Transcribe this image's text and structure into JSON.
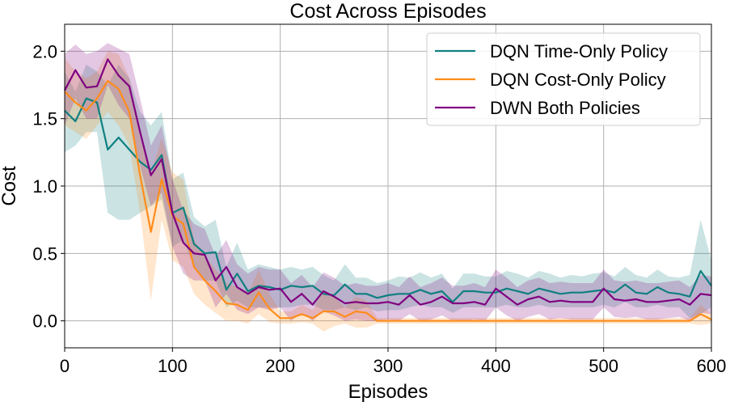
{
  "chart_data": {
    "type": "line",
    "title": "Cost Across Episodes",
    "xlabel": "Episodes",
    "ylabel": "Cost",
    "xlim": [
      0,
      600
    ],
    "ylim": [
      -0.2,
      2.2
    ],
    "xticks": [
      0,
      100,
      200,
      300,
      400,
      500,
      600
    ],
    "yticks": [
      0.0,
      0.5,
      1.0,
      1.5,
      2.0
    ],
    "xtick_labels": [
      "0",
      "100",
      "200",
      "300",
      "400",
      "500",
      "600"
    ],
    "ytick_labels": [
      "0.0",
      "0.5",
      "1.0",
      "1.5",
      "2.0"
    ],
    "grid": true,
    "legend_position": "top-right",
    "x": [
      0,
      10,
      20,
      30,
      40,
      50,
      60,
      70,
      80,
      90,
      100,
      110,
      120,
      130,
      140,
      150,
      160,
      170,
      180,
      190,
      200,
      210,
      220,
      230,
      240,
      250,
      260,
      270,
      280,
      290,
      300,
      310,
      320,
      330,
      340,
      350,
      360,
      370,
      380,
      390,
      400,
      410,
      420,
      430,
      440,
      450,
      460,
      470,
      480,
      490,
      500,
      510,
      520,
      530,
      540,
      550,
      560,
      570,
      580,
      590,
      600
    ],
    "series": [
      {
        "name": "DQN Time-Only Policy",
        "color": "#108080",
        "values": [
          1.56,
          1.48,
          1.65,
          1.62,
          1.27,
          1.36,
          1.27,
          1.18,
          1.12,
          1.23,
          0.8,
          0.84,
          0.57,
          0.5,
          0.51,
          0.23,
          0.35,
          0.22,
          0.26,
          0.25,
          0.23,
          0.26,
          0.25,
          0.26,
          0.2,
          0.19,
          0.27,
          0.2,
          0.2,
          0.17,
          0.19,
          0.2,
          0.2,
          0.23,
          0.2,
          0.22,
          0.14,
          0.22,
          0.22,
          0.21,
          0.21,
          0.24,
          0.22,
          0.2,
          0.24,
          0.22,
          0.2,
          0.21,
          0.21,
          0.22,
          0.23,
          0.21,
          0.27,
          0.21,
          0.2,
          0.25,
          0.21,
          0.2,
          0.18,
          0.37,
          0.26
        ],
        "lower": [
          1.25,
          1.3,
          1.4,
          1.4,
          0.8,
          0.75,
          0.75,
          0.8,
          0.85,
          0.9,
          0.55,
          0.6,
          0.4,
          0.3,
          0.3,
          0.1,
          0.15,
          0.1,
          0.1,
          0.1,
          0.1,
          0.1,
          0.12,
          0.12,
          0.08,
          0.08,
          0.1,
          0.08,
          0.1,
          0.07,
          0.08,
          0.08,
          0.1,
          0.12,
          0.1,
          0.1,
          0.06,
          0.1,
          0.1,
          0.1,
          0.1,
          0.12,
          0.1,
          0.1,
          0.12,
          0.1,
          0.1,
          0.1,
          0.1,
          0.1,
          0.12,
          0.1,
          0.14,
          0.1,
          0.1,
          0.12,
          0.1,
          0.1,
          0.02,
          0.05,
          0.1
        ],
        "upper": [
          1.85,
          1.7,
          1.9,
          1.85,
          1.75,
          1.9,
          1.8,
          1.55,
          1.45,
          1.55,
          1.05,
          1.1,
          0.77,
          0.7,
          0.75,
          0.4,
          0.58,
          0.38,
          0.42,
          0.4,
          0.38,
          0.4,
          0.38,
          0.4,
          0.34,
          0.3,
          0.42,
          0.32,
          0.32,
          0.28,
          0.3,
          0.33,
          0.32,
          0.36,
          0.32,
          0.35,
          0.24,
          0.35,
          0.35,
          0.33,
          0.33,
          0.37,
          0.35,
          0.32,
          0.37,
          0.35,
          0.32,
          0.34,
          0.33,
          0.35,
          0.36,
          0.33,
          0.4,
          0.34,
          0.32,
          0.38,
          0.33,
          0.32,
          0.34,
          0.75,
          0.45
        ]
      },
      {
        "name": "DQN Cost-Only Policy",
        "color": "#ff8c1a",
        "values": [
          1.7,
          1.62,
          1.56,
          1.65,
          1.78,
          1.72,
          1.55,
          1.08,
          0.66,
          1.05,
          0.78,
          0.72,
          0.4,
          0.3,
          0.22,
          0.13,
          0.12,
          0.08,
          0.21,
          0.09,
          0.02,
          0.02,
          0.05,
          0.02,
          0.07,
          0.07,
          0.03,
          0.07,
          0.06,
          0.0,
          0.0,
          0.0,
          0.0,
          0.0,
          0.0,
          0.0,
          0.0,
          0.0,
          0.0,
          0.0,
          0.0,
          0.0,
          0.0,
          0.0,
          0.0,
          0.0,
          0.0,
          0.0,
          0.0,
          0.0,
          0.0,
          0.0,
          0.0,
          0.0,
          0.0,
          0.0,
          0.0,
          0.0,
          0.0,
          0.05,
          0.01
        ],
        "lower": [
          1.45,
          1.4,
          1.35,
          1.45,
          1.55,
          1.45,
          1.3,
          0.8,
          0.15,
          0.75,
          0.45,
          0.4,
          0.2,
          0.12,
          0.06,
          0.0,
          0.0,
          -0.02,
          0.05,
          -0.01,
          -0.02,
          -0.02,
          -0.01,
          -0.02,
          -0.08,
          -0.04,
          -0.02,
          -0.05,
          -0.05,
          -0.02,
          -0.02,
          -0.02,
          -0.02,
          -0.02,
          -0.02,
          -0.02,
          -0.02,
          -0.02,
          -0.02,
          -0.02,
          -0.02,
          -0.02,
          -0.02,
          -0.02,
          -0.02,
          -0.02,
          -0.02,
          -0.02,
          -0.02,
          -0.02,
          -0.02,
          -0.02,
          -0.02,
          -0.02,
          -0.02,
          -0.02,
          -0.02,
          -0.02,
          -0.02,
          -0.03,
          -0.02
        ],
        "upper": [
          1.95,
          1.85,
          1.8,
          1.85,
          2.0,
          1.98,
          1.8,
          1.35,
          1.1,
          1.35,
          1.1,
          1.05,
          0.6,
          0.48,
          0.38,
          0.28,
          0.25,
          0.2,
          0.38,
          0.2,
          0.07,
          0.07,
          0.12,
          0.08,
          0.22,
          0.18,
          0.1,
          0.18,
          0.15,
          0.02,
          0.02,
          0.02,
          0.02,
          0.02,
          0.02,
          0.02,
          0.02,
          0.02,
          0.02,
          0.02,
          0.02,
          0.02,
          0.02,
          0.02,
          0.02,
          0.02,
          0.02,
          0.02,
          0.02,
          0.02,
          0.02,
          0.02,
          0.02,
          0.02,
          0.02,
          0.02,
          0.02,
          0.02,
          0.02,
          0.12,
          0.05
        ]
      },
      {
        "name": "DWN Both Policies",
        "color": "#800080",
        "values": [
          1.71,
          1.86,
          1.73,
          1.74,
          1.94,
          1.82,
          1.74,
          1.4,
          1.08,
          1.2,
          0.8,
          0.58,
          0.5,
          0.49,
          0.3,
          0.4,
          0.25,
          0.2,
          0.25,
          0.23,
          0.24,
          0.14,
          0.2,
          0.12,
          0.22,
          0.18,
          0.13,
          0.14,
          0.13,
          0.13,
          0.14,
          0.12,
          0.19,
          0.12,
          0.14,
          0.18,
          0.13,
          0.13,
          0.14,
          0.12,
          0.24,
          0.18,
          0.12,
          0.16,
          0.18,
          0.14,
          0.15,
          0.14,
          0.14,
          0.14,
          0.24,
          0.16,
          0.15,
          0.16,
          0.14,
          0.14,
          0.15,
          0.16,
          0.12,
          0.2,
          0.19
        ],
        "lower": [
          1.45,
          1.65,
          1.5,
          1.5,
          1.75,
          1.6,
          1.5,
          1.15,
          0.85,
          0.95,
          0.55,
          0.35,
          0.3,
          0.3,
          0.1,
          0.2,
          0.08,
          0.05,
          0.1,
          0.08,
          0.1,
          0.0,
          0.06,
          0.0,
          0.07,
          0.04,
          0.0,
          0.01,
          0.0,
          0.0,
          0.01,
          0.0,
          0.05,
          0.0,
          0.01,
          0.04,
          0.0,
          0.0,
          0.01,
          0.0,
          0.1,
          0.04,
          0.0,
          0.03,
          0.05,
          0.01,
          0.02,
          0.01,
          0.01,
          0.01,
          0.1,
          0.03,
          0.02,
          0.03,
          0.01,
          0.01,
          0.02,
          0.03,
          0.0,
          0.06,
          0.05
        ],
        "upper": [
          1.98,
          2.05,
          1.98,
          2.0,
          2.06,
          2.02,
          1.98,
          1.65,
          1.3,
          1.45,
          1.05,
          0.82,
          0.72,
          0.68,
          0.48,
          0.6,
          0.42,
          0.35,
          0.4,
          0.38,
          0.38,
          0.28,
          0.34,
          0.25,
          0.36,
          0.32,
          0.26,
          0.28,
          0.26,
          0.26,
          0.28,
          0.25,
          0.33,
          0.25,
          0.28,
          0.32,
          0.26,
          0.26,
          0.28,
          0.25,
          0.38,
          0.32,
          0.25,
          0.3,
          0.32,
          0.28,
          0.29,
          0.28,
          0.28,
          0.28,
          0.38,
          0.3,
          0.29,
          0.3,
          0.28,
          0.28,
          0.29,
          0.3,
          0.25,
          0.34,
          0.33
        ]
      }
    ]
  }
}
